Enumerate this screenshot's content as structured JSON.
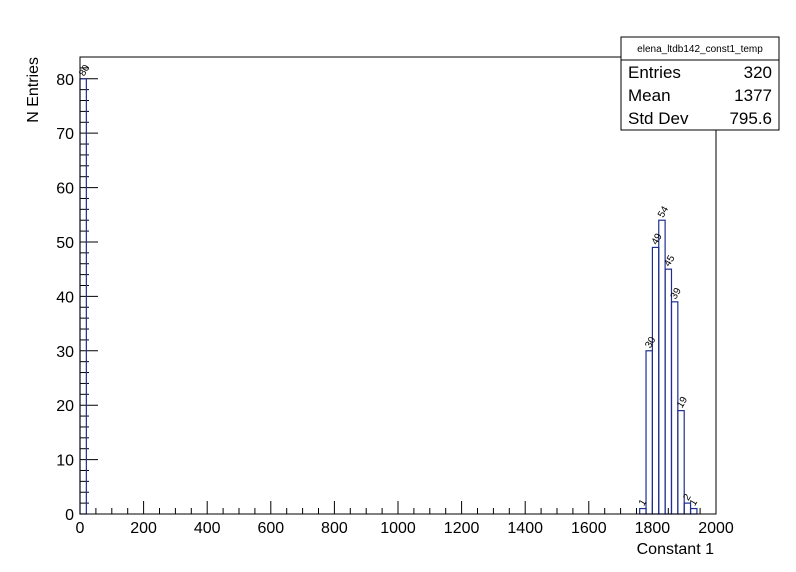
{
  "chart_data": {
    "type": "histogram",
    "title": "",
    "xlabel": "Constant 1",
    "ylabel": "N Entries",
    "xlim": [
      0,
      2000
    ],
    "ylim": [
      0,
      84
    ],
    "x_ticks": [
      0,
      200,
      400,
      600,
      800,
      1000,
      1200,
      1400,
      1600,
      1800,
      2000
    ],
    "y_ticks": [
      0,
      10,
      20,
      30,
      40,
      50,
      60,
      70,
      80
    ],
    "bins": [
      {
        "x0": 0,
        "x1": 20,
        "value": 80
      },
      {
        "x0": 1760,
        "x1": 1780,
        "value": 1
      },
      {
        "x0": 1780,
        "x1": 1800,
        "value": 30
      },
      {
        "x0": 1800,
        "x1": 1820,
        "value": 49
      },
      {
        "x0": 1820,
        "x1": 1840,
        "value": 54
      },
      {
        "x0": 1840,
        "x1": 1860,
        "value": 45
      },
      {
        "x0": 1860,
        "x1": 1880,
        "value": 39
      },
      {
        "x0": 1880,
        "x1": 1900,
        "value": 19
      },
      {
        "x0": 1900,
        "x1": 1920,
        "value": 2
      },
      {
        "x0": 1920,
        "x1": 1940,
        "value": 1
      }
    ],
    "bar_labels": [
      "80",
      "1",
      "30",
      "49",
      "54",
      "45",
      "39",
      "19",
      "2",
      "1"
    ],
    "line_color": "#1f2f8f",
    "grid": false,
    "legend": "top-right"
  },
  "stats": {
    "title": "elena_ltdb142_const1_temp",
    "rows": [
      {
        "label": "Entries",
        "value": "320"
      },
      {
        "label": "Mean",
        "value": "1377"
      },
      {
        "label": "Std Dev",
        "value": "795.6"
      }
    ]
  }
}
